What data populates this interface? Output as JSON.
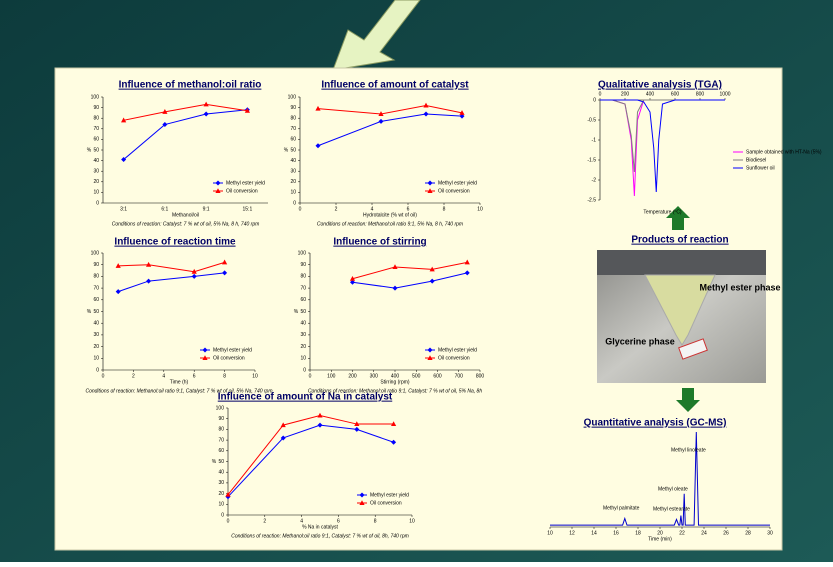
{
  "chart_data": [
    {
      "type": "line",
      "title": "Influence of methanol:oil ratio",
      "xlabel": "Methanol/oil",
      "ylabel": "%",
      "caption": "Conditions of reaction: Catalyst: 7 % wt of oil, 5% Na, 8 h, 740 rpm",
      "categories": [
        "3:1",
        "6:1",
        "9:1",
        "15:1"
      ],
      "series": [
        {
          "name": "Methyl ester yield",
          "color": "#0000ff",
          "marker": "diamond",
          "values": [
            41,
            74,
            84,
            88
          ]
        },
        {
          "name": "Oil conversion",
          "color": "#ff0000",
          "marker": "triangle",
          "values": [
            78,
            86,
            93,
            87
          ]
        }
      ],
      "ylim": [
        0,
        100
      ],
      "yticks": [
        0,
        10,
        20,
        30,
        40,
        50,
        60,
        70,
        80,
        90,
        100
      ],
      "legend": "lower right"
    },
    {
      "type": "line",
      "title": "Influence of amount of catalyst",
      "xlabel": "Hydrotalcite (% wt of oil)",
      "ylabel": "%",
      "caption": "Conditions of reaction: Methanol:oil ratio 9:1, 5% Na, 8 h, 740 rpm",
      "x": [
        1,
        4.5,
        7,
        9
      ],
      "series": [
        {
          "name": "Methyl ester yield",
          "color": "#0000ff",
          "marker": "diamond",
          "values": [
            54,
            77,
            84,
            82
          ]
        },
        {
          "name": "Oil conversion",
          "color": "#ff0000",
          "marker": "triangle",
          "values": [
            89,
            84,
            92,
            85
          ]
        }
      ],
      "xlim": [
        0,
        10
      ],
      "xticks": [
        0,
        2,
        4,
        6,
        8,
        10
      ],
      "ylim": [
        0,
        100
      ],
      "yticks": [
        0,
        10,
        20,
        30,
        40,
        50,
        60,
        70,
        80,
        90,
        100
      ],
      "legend": "lower right"
    },
    {
      "type": "line",
      "title": "Influence of reaction time",
      "xlabel": "Time (h)",
      "ylabel": "%",
      "caption": "Conditions of reaction: Methanol:oil ratio 9:1, Catalyst: 7 % wt of oil, 5% Na, 740 rpm",
      "x": [
        1,
        3,
        6,
        8
      ],
      "series": [
        {
          "name": "Methyl ester yield",
          "color": "#0000ff",
          "marker": "diamond",
          "values": [
            67,
            76,
            80,
            83
          ]
        },
        {
          "name": "Oil conversion",
          "color": "#ff0000",
          "marker": "triangle",
          "values": [
            89,
            90,
            84,
            92
          ]
        }
      ],
      "xlim": [
        0,
        10
      ],
      "xticks": [
        0,
        2,
        4,
        6,
        8,
        10
      ],
      "ylim": [
        0,
        100
      ],
      "yticks": [
        0,
        10,
        20,
        30,
        40,
        50,
        60,
        70,
        80,
        90,
        100
      ],
      "legend": "lower right"
    },
    {
      "type": "line",
      "title": "Influence of stirring",
      "xlabel": "Stirring (rpm)",
      "ylabel": "%",
      "caption": "Conditions of reaction: Methanol:oil ratio 9:1, Catalyst: 7 % wt of oil, 5% Na, 8h",
      "x": [
        200,
        400,
        575,
        740
      ],
      "series": [
        {
          "name": "Methyl ester yield",
          "color": "#0000ff",
          "marker": "diamond",
          "values": [
            75,
            70,
            76,
            83
          ]
        },
        {
          "name": "Oil conversion",
          "color": "#ff0000",
          "marker": "triangle",
          "values": [
            78,
            88,
            86,
            92
          ]
        }
      ],
      "xlim": [
        0,
        800
      ],
      "xticks": [
        0,
        100,
        200,
        300,
        400,
        500,
        600,
        700,
        800
      ],
      "ylim": [
        0,
        100
      ],
      "yticks": [
        0,
        10,
        20,
        30,
        40,
        50,
        60,
        70,
        80,
        90,
        100
      ],
      "legend": "lower right"
    },
    {
      "type": "line",
      "title": "Influence of amount of Na in catalyst",
      "xlabel": "% Na in catalyst",
      "ylabel": "%",
      "caption": "Conditions of reaction: Methanol:oil ratio 9:1, Catalyst: 7 % wt of oil, 8h, 740 rpm",
      "x": [
        0,
        3,
        5,
        7,
        9
      ],
      "series": [
        {
          "name": "Methyl ester yield",
          "color": "#0000ff",
          "marker": "diamond",
          "values": [
            17,
            72,
            84,
            80,
            68
          ]
        },
        {
          "name": "Oil conversion",
          "color": "#ff0000",
          "marker": "triangle",
          "values": [
            19,
            84,
            93,
            85,
            85
          ]
        }
      ],
      "xlim": [
        0,
        10
      ],
      "xticks": [
        0,
        2,
        4,
        6,
        8,
        10
      ],
      "ylim": [
        0,
        100
      ],
      "yticks": [
        0,
        10,
        20,
        30,
        40,
        50,
        60,
        70,
        80,
        90,
        100
      ],
      "legend": "lower right"
    },
    {
      "type": "line",
      "title": "Qualitative analysis (TGA)",
      "xlabel": "Temperature (ºC)",
      "x": [
        0,
        100,
        200,
        250,
        275,
        300,
        350,
        400,
        430,
        450,
        470,
        500,
        600,
        800,
        1000
      ],
      "series": [
        {
          "name": "Sample obtained with HT-Na (5%)",
          "color": "#ff00ff",
          "values": [
            0,
            0,
            -0.1,
            -1.0,
            -2.4,
            -0.5,
            0,
            0,
            0,
            0,
            0,
            0,
            0,
            0,
            0
          ]
        },
        {
          "name": "Biodiesel",
          "color": "#808080",
          "values": [
            0,
            0,
            -0.1,
            -0.9,
            -1.8,
            -0.3,
            0,
            0,
            0,
            0,
            0,
            0,
            0,
            0,
            0
          ]
        },
        {
          "name": "Sunflower oil",
          "color": "#0000ff",
          "values": [
            0,
            0,
            0,
            0,
            0,
            0,
            -0.05,
            -0.3,
            -1.2,
            -2.3,
            -1.0,
            -0.1,
            0,
            0,
            0
          ]
        }
      ],
      "xlim": [
        0,
        1000
      ],
      "xticks": [
        0,
        200,
        400,
        600,
        800,
        1000
      ],
      "ylim": [
        -2.5,
        0
      ],
      "yticks": [
        0,
        -0.5,
        -1,
        -1.5,
        -2,
        -2.5
      ],
      "legend": "right"
    },
    {
      "type": "line",
      "title": "Quantitative analysis (GC-MS)",
      "xlabel": "Time (min)",
      "annotations": [
        "Methyl palmitate",
        "Methyl linoleate",
        "Methyl oleate",
        "Methyl estearate"
      ],
      "x": [
        10,
        16.6,
        16.8,
        17,
        21.3,
        21.5,
        21.7,
        21.8,
        21.9,
        22.0,
        22.1,
        22.2,
        22.3,
        23.1,
        23.3,
        23.5,
        30
      ],
      "series": [
        {
          "color": "#0000cc",
          "values": [
            2,
            2,
            9,
            2,
            2,
            8,
            2,
            2,
            12,
            2,
            2,
            35,
            2,
            2,
            100,
            2,
            2
          ]
        }
      ],
      "xlim": [
        10,
        30
      ],
      "xticks": [
        10,
        12,
        14,
        16,
        18,
        20,
        22,
        24,
        26,
        28,
        30
      ],
      "ylim": [
        0,
        100
      ]
    }
  ],
  "products": {
    "title": "Products of reaction",
    "labels": [
      "Methyl ester phase",
      "Glycerine phase"
    ]
  }
}
